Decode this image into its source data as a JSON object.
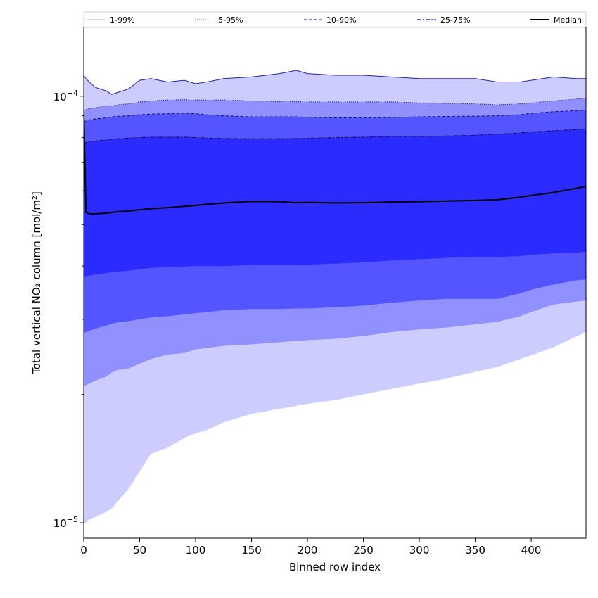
{
  "chart_data": {
    "type": "area",
    "xlabel": "Binned row index",
    "ylabel": "Total vertical NO₂ column [mol/m²]",
    "yscale": "log",
    "xlim": [
      0,
      449
    ],
    "ylim": [
      9.2e-06,
      0.000145
    ],
    "grid": false,
    "legend_placement": "top",
    "x_ticks": [
      0,
      50,
      100,
      150,
      200,
      250,
      300,
      350,
      400
    ],
    "x_tick_labels": [
      "0",
      "50",
      "100",
      "150",
      "200",
      "250",
      "300",
      "350",
      "400"
    ],
    "y_major_ticks": [
      {
        "value": 1e-05,
        "base": "10",
        "exp": "−5"
      },
      {
        "value": 0.0001,
        "base": "10",
        "exp": "−4"
      }
    ],
    "y_minor_ticks": [
      2e-05,
      3e-05,
      4e-05,
      5e-05,
      6e-05,
      7e-05,
      8e-05,
      9e-05
    ],
    "x": [
      0,
      2,
      5,
      10,
      20,
      25,
      30,
      40,
      50,
      60,
      75,
      90,
      100,
      110,
      125,
      150,
      175,
      190,
      200,
      225,
      250,
      275,
      300,
      325,
      350,
      370,
      390,
      400,
      420,
      440,
      449
    ],
    "series": [
      {
        "name": "1-99%",
        "color": "#ccccff",
        "lower": [
          1e-05,
          1e-05,
          1.02e-05,
          1.03e-05,
          1.06e-05,
          1.08e-05,
          1.12e-05,
          1.2e-05,
          1.32e-05,
          1.45e-05,
          1.5e-05,
          1.58e-05,
          1.62e-05,
          1.65e-05,
          1.72e-05,
          1.8e-05,
          1.85e-05,
          1.88e-05,
          1.9e-05,
          1.94e-05,
          2e-05,
          2.06e-05,
          2.12e-05,
          2.18e-05,
          2.26e-05,
          2.32e-05,
          2.42e-05,
          2.47e-05,
          2.58e-05,
          2.73e-05,
          2.8e-05
        ],
        "upper": [
          0.000112,
          0.00011,
          0.000108,
          0.000105,
          0.000103,
          0.000101,
          0.000102,
          0.000104,
          0.000109,
          0.00011,
          0.000108,
          0.000109,
          0.000107,
          0.000108,
          0.00011,
          0.000111,
          0.000113,
          0.000115,
          0.000113,
          0.000112,
          0.000112,
          0.000111,
          0.00011,
          0.00011,
          0.00011,
          0.000108,
          0.000108,
          0.000109,
          0.000111,
          0.00011,
          0.00011
        ]
      },
      {
        "name": "5-95%",
        "color": "#9090ff",
        "lower": [
          2.1e-05,
          2.1e-05,
          2.12e-05,
          2.15e-05,
          2.2e-05,
          2.25e-05,
          2.28e-05,
          2.3e-05,
          2.36e-05,
          2.42e-05,
          2.48e-05,
          2.5e-05,
          2.55e-05,
          2.57e-05,
          2.6e-05,
          2.62e-05,
          2.65e-05,
          2.67e-05,
          2.68e-05,
          2.7e-05,
          2.74e-05,
          2.8e-05,
          2.84e-05,
          2.87e-05,
          2.92e-05,
          2.96e-05,
          3.05e-05,
          3.12e-05,
          3.25e-05,
          3.3e-05,
          3.32e-05
        ],
        "upper": [
          9.3e-05,
          9.3e-05,
          9.35e-05,
          9.4e-05,
          9.5e-05,
          9.5e-05,
          9.55e-05,
          9.6e-05,
          9.7e-05,
          9.75e-05,
          9.8e-05,
          9.82e-05,
          9.8e-05,
          9.8e-05,
          9.8e-05,
          9.75e-05,
          9.72e-05,
          9.72e-05,
          9.7e-05,
          9.7e-05,
          9.7e-05,
          9.7e-05,
          9.65e-05,
          9.62e-05,
          9.6e-05,
          9.55e-05,
          9.6e-05,
          9.65e-05,
          9.75e-05,
          9.85e-05,
          9.9e-05
        ]
      },
      {
        "name": "10-90%",
        "color": "#5555ff",
        "lower": [
          2.78e-05,
          2.8e-05,
          2.82e-05,
          2.85e-05,
          2.9e-05,
          2.93e-05,
          2.95e-05,
          2.97e-05,
          3e-05,
          3.03e-05,
          3.05e-05,
          3.08e-05,
          3.1e-05,
          3.12e-05,
          3.15e-05,
          3.17e-05,
          3.17e-05,
          3.18e-05,
          3.18e-05,
          3.2e-05,
          3.23e-05,
          3.28e-05,
          3.32e-05,
          3.35e-05,
          3.35e-05,
          3.35e-05,
          3.45e-05,
          3.52e-05,
          3.62e-05,
          3.7e-05,
          3.72e-05
        ],
        "upper": [
          8.7e-05,
          8.75e-05,
          8.8e-05,
          8.85e-05,
          8.9e-05,
          8.95e-05,
          8.97e-05,
          9e-05,
          9.05e-05,
          9.08e-05,
          9.1e-05,
          9.12e-05,
          9.1e-05,
          9.05e-05,
          9e-05,
          8.95e-05,
          8.95e-05,
          8.95e-05,
          8.93e-05,
          8.9e-05,
          8.9e-05,
          8.92e-05,
          8.95e-05,
          8.97e-05,
          8.98e-05,
          9e-05,
          9.05e-05,
          9.12e-05,
          9.2e-05,
          9.25e-05,
          9.28e-05
        ]
      },
      {
        "name": "25-75%",
        "color": "#2b2bff",
        "lower": [
          3.75e-05,
          3.78e-05,
          3.8e-05,
          3.82e-05,
          3.85e-05,
          3.87e-05,
          3.88e-05,
          3.9e-05,
          3.93e-05,
          3.96e-05,
          3.98e-05,
          3.99e-05,
          4e-05,
          4e-05,
          4e-05,
          4.02e-05,
          4.02e-05,
          4.02e-05,
          4.03e-05,
          4.05e-05,
          4.08e-05,
          4.12e-05,
          4.15e-05,
          4.18e-05,
          4.2e-05,
          4.2e-05,
          4.22e-05,
          4.25e-05,
          4.28e-05,
          4.3e-05,
          4.32e-05
        ],
        "upper": [
          7.7e-05,
          7.8e-05,
          7.82e-05,
          7.85e-05,
          7.9e-05,
          7.93e-05,
          7.95e-05,
          7.98e-05,
          8e-05,
          8.02e-05,
          8.02e-05,
          8.02e-05,
          8e-05,
          7.98e-05,
          7.96e-05,
          7.95e-05,
          7.95e-05,
          7.96e-05,
          7.97e-05,
          8e-05,
          8.02e-05,
          8.05e-05,
          8.05e-05,
          8.07e-05,
          8.1e-05,
          8.15e-05,
          8.2e-05,
          8.25e-05,
          8.3e-05,
          8.35e-05,
          8.38e-05
        ]
      },
      {
        "name": "Median",
        "color": "#000000",
        "values": [
          9.2e-05,
          5.35e-05,
          5.3e-05,
          5.3e-05,
          5.32e-05,
          5.34e-05,
          5.36e-05,
          5.38e-05,
          5.42e-05,
          5.45e-05,
          5.48e-05,
          5.52e-05,
          5.55e-05,
          5.58e-05,
          5.62e-05,
          5.67e-05,
          5.66e-05,
          5.63e-05,
          5.64e-05,
          5.62e-05,
          5.63e-05,
          5.65e-05,
          5.66e-05,
          5.68e-05,
          5.7e-05,
          5.72e-05,
          5.8e-05,
          5.85e-05,
          5.95e-05,
          6.08e-05,
          6.15e-05
        ]
      }
    ],
    "legend": [
      {
        "label": "1-99%",
        "color": "#ccccff",
        "style": "solid"
      },
      {
        "label": "5-95%",
        "color": "#9090ff",
        "style": "dotted"
      },
      {
        "label": "10-90%",
        "color": "#5555ff",
        "style": "dashed"
      },
      {
        "label": "25-75%",
        "color": "#2b2bff",
        "style": "dashdot"
      },
      {
        "label": "Median",
        "color": "#000000",
        "style": "solid"
      }
    ]
  }
}
